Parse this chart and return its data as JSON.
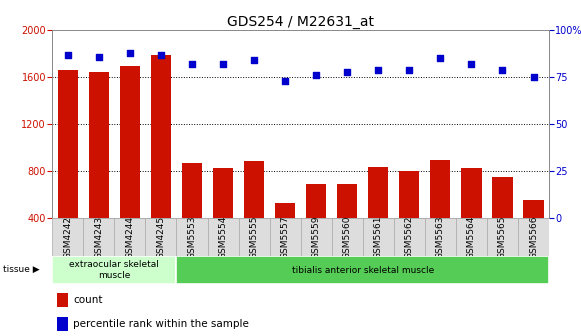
{
  "title": "GDS254 / M22631_at",
  "samples": [
    "GSM4242",
    "GSM4243",
    "GSM4244",
    "GSM4245",
    "GSM5553",
    "GSM5554",
    "GSM5555",
    "GSM5557",
    "GSM5559",
    "GSM5560",
    "GSM5561",
    "GSM5562",
    "GSM5563",
    "GSM5564",
    "GSM5565",
    "GSM5566"
  ],
  "counts": [
    1660,
    1645,
    1695,
    1790,
    870,
    825,
    890,
    530,
    695,
    690,
    840,
    800,
    895,
    825,
    755,
    555
  ],
  "percentiles": [
    87,
    86,
    88,
    87,
    82,
    82,
    84,
    73,
    76,
    78,
    79,
    79,
    85,
    82,
    79,
    75
  ],
  "left_ylim": [
    400,
    2000
  ],
  "right_ylim": [
    0,
    100
  ],
  "left_yticks": [
    400,
    800,
    1200,
    1600,
    2000
  ],
  "right_yticks": [
    0,
    25,
    50,
    75,
    100
  ],
  "bar_color": "#CC1100",
  "dot_color": "#0000CC",
  "tissue_groups": [
    {
      "label": "extraocular skeletal\nmuscle",
      "start": 0,
      "end": 4,
      "color": "#ccffcc"
    },
    {
      "label": "tibialis anterior skeletal muscle",
      "start": 4,
      "end": 16,
      "color": "#55cc55"
    }
  ],
  "legend_bar": "count",
  "legend_dot": "percentile rank within the sample",
  "title_fontsize": 10,
  "tick_fontsize": 7,
  "sample_fontsize": 6.5
}
